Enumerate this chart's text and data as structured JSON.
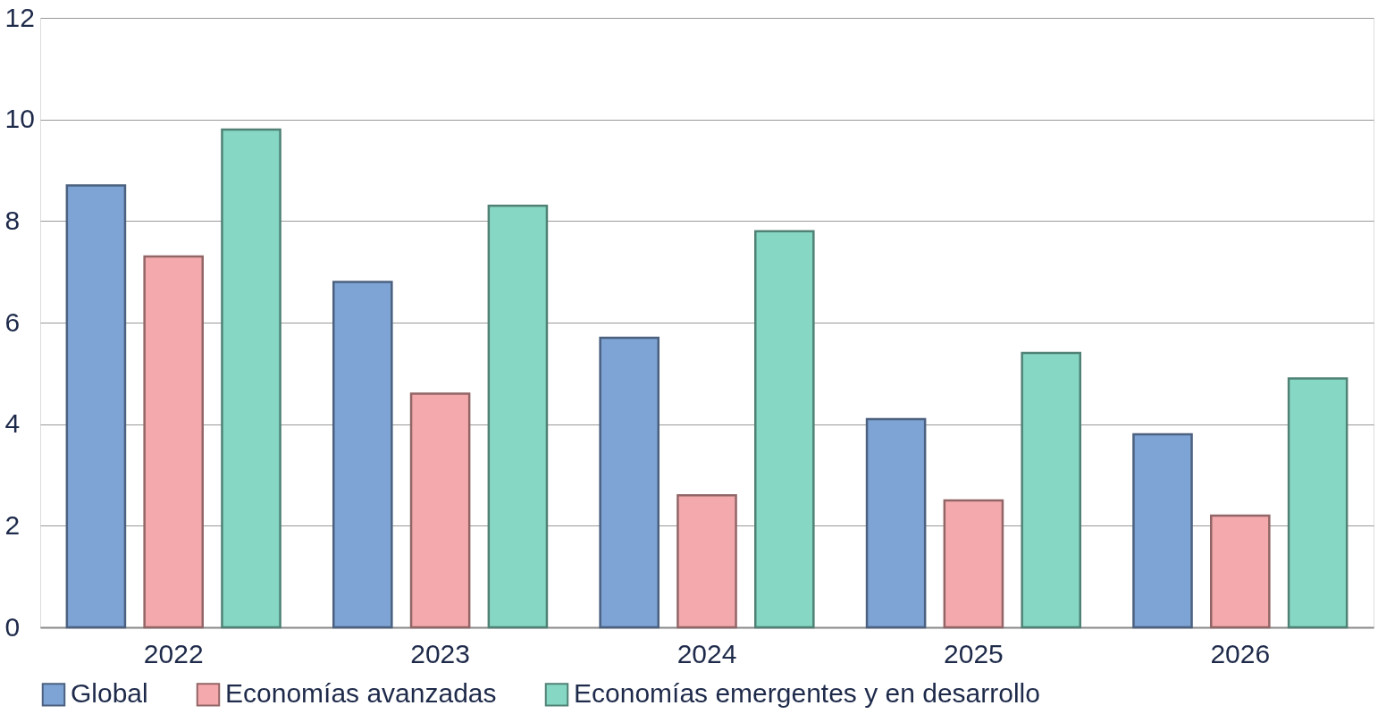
{
  "chart_data": {
    "type": "bar",
    "categories": [
      "2022",
      "2023",
      "2024",
      "2025",
      "2026"
    ],
    "series": [
      {
        "name": "Global",
        "color": "#7ea3d5",
        "values": [
          8.7,
          6.8,
          5.7,
          4.1,
          3.8
        ]
      },
      {
        "name": "Economías avanzadas",
        "color": "#f4aaad",
        "values": [
          7.3,
          4.6,
          2.6,
          2.5,
          2.2
        ]
      },
      {
        "name": "Economías emergentes y en desarrollo",
        "color": "#86d8c4",
        "values": [
          9.8,
          8.3,
          7.8,
          5.4,
          4.9
        ]
      }
    ],
    "ylim": [
      0,
      12
    ],
    "yticks": [
      0,
      2,
      4,
      6,
      8,
      10,
      12
    ],
    "grid": "y",
    "legend": "bottom"
  }
}
